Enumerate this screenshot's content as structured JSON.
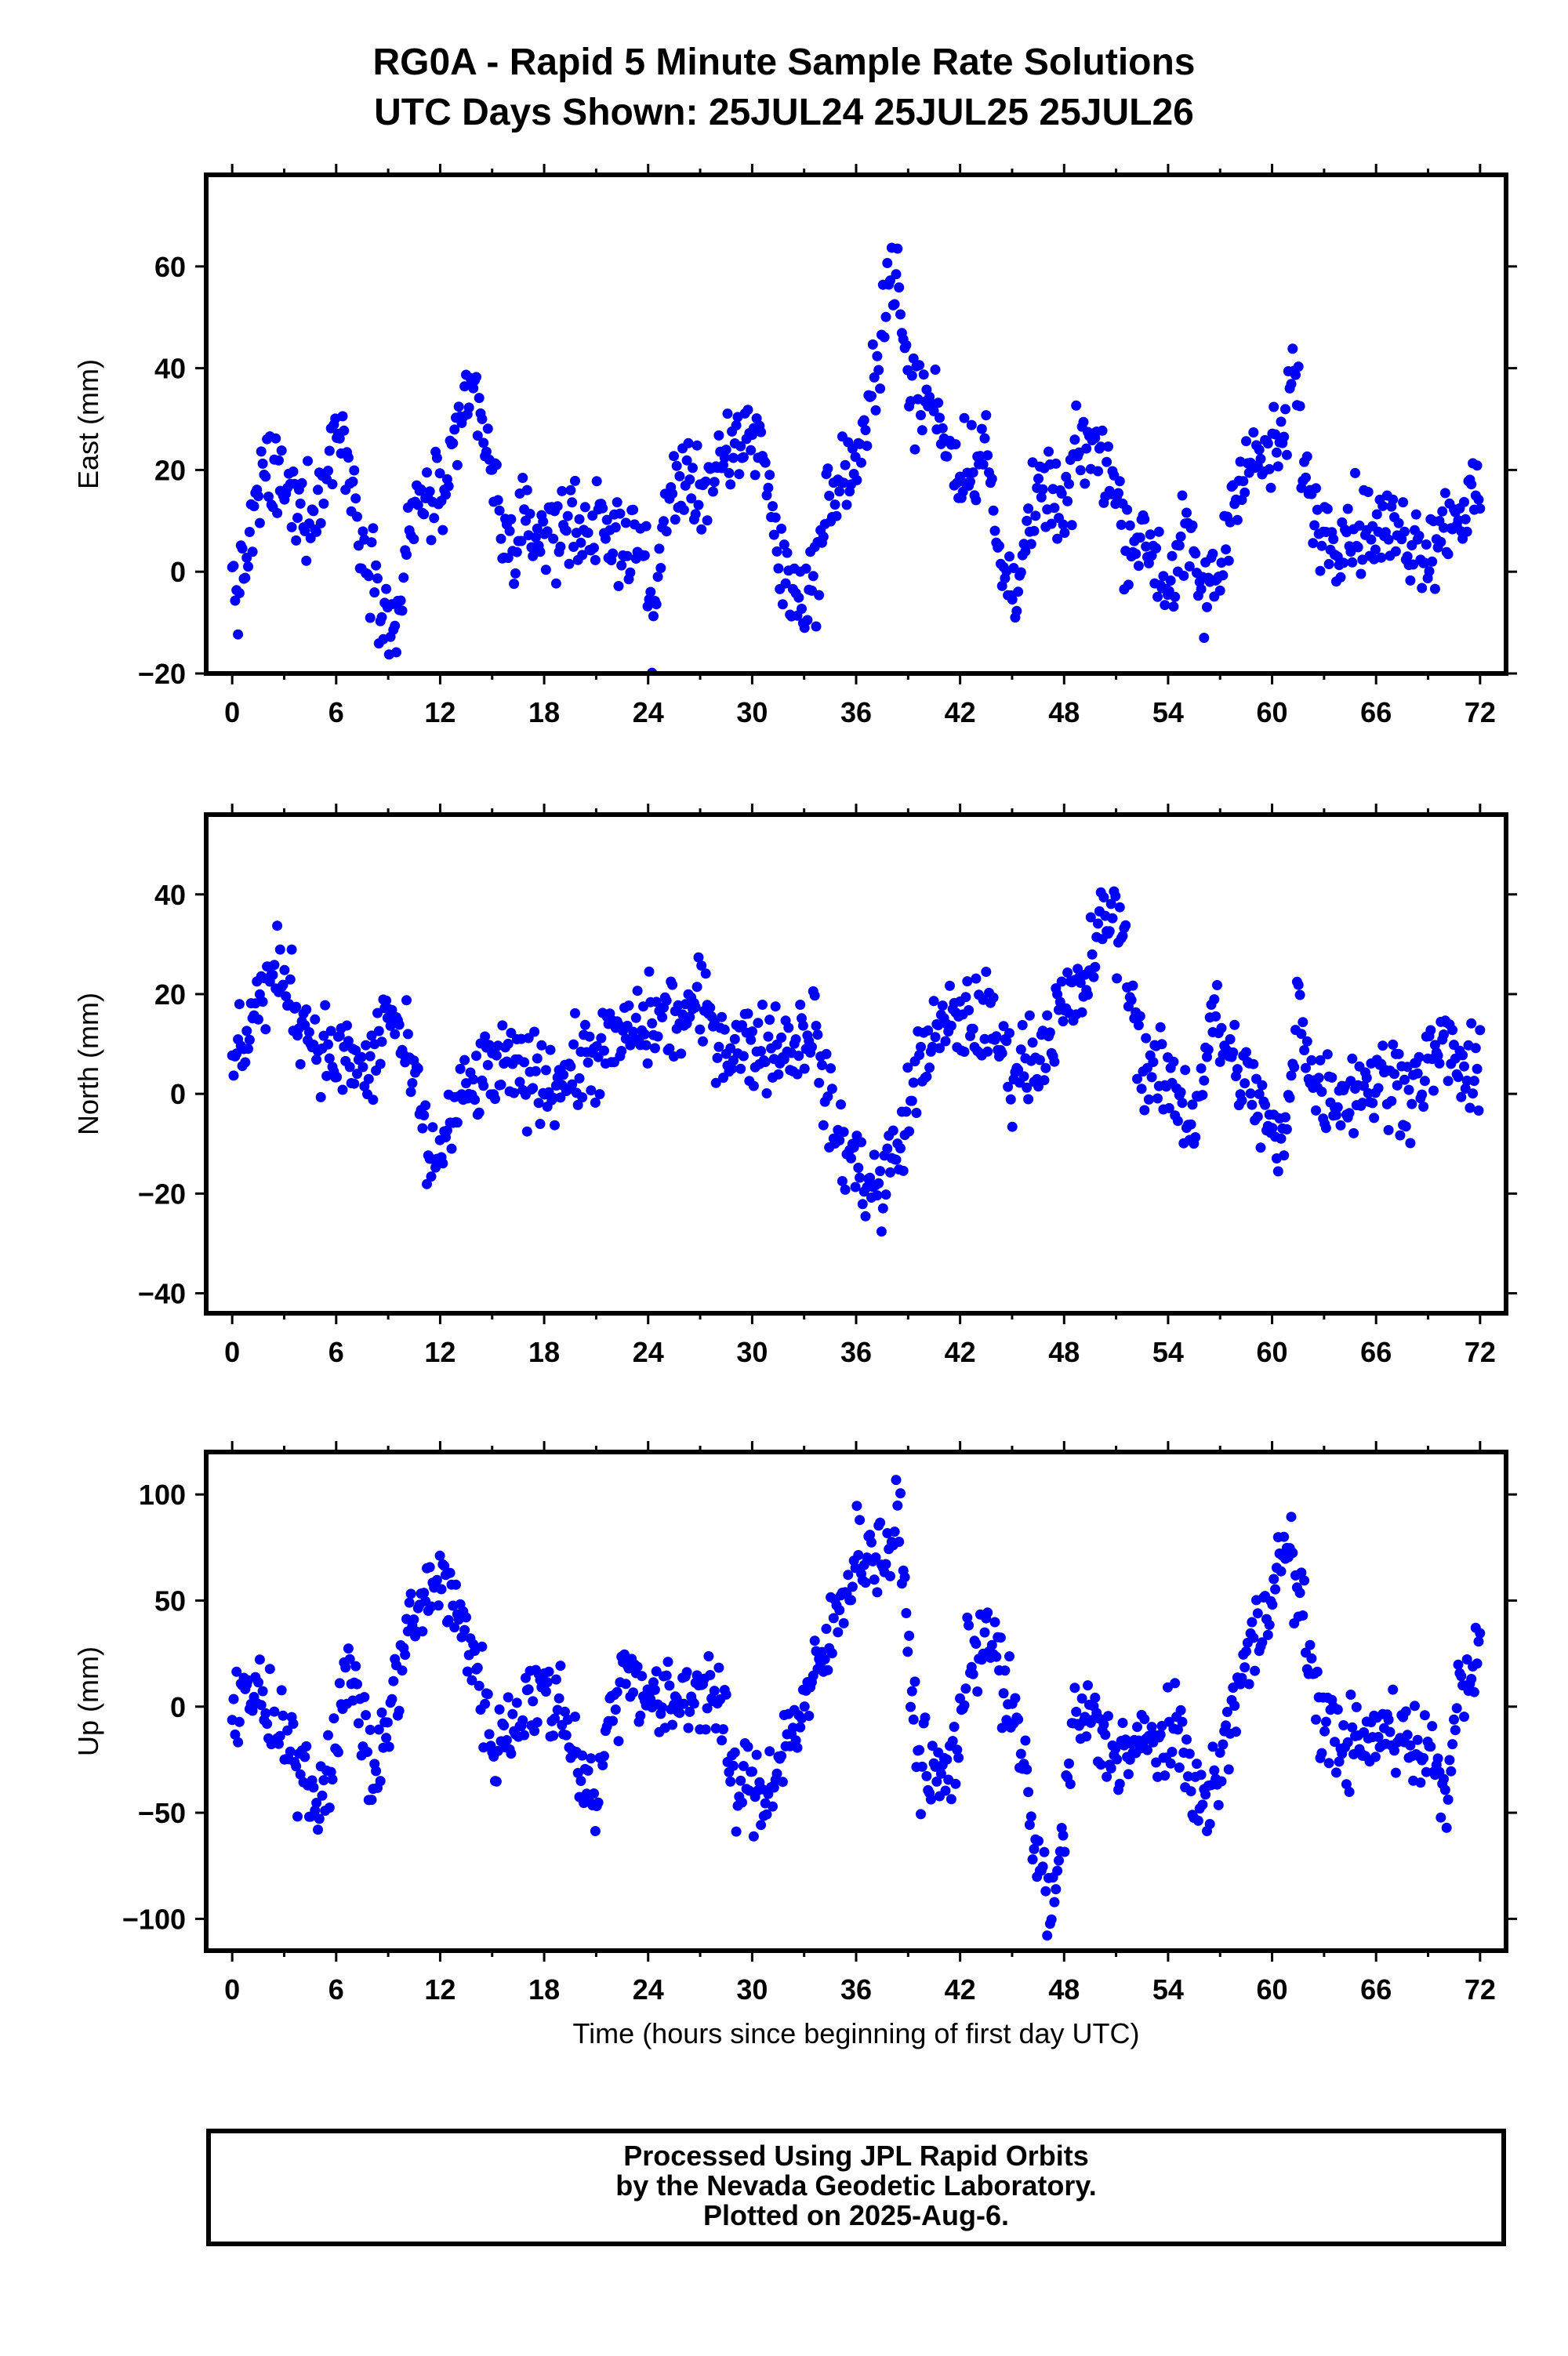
{
  "title": "RG0A - Rapid 5 Minute Sample Rate Solutions",
  "subtitle": "UTC Days Shown:  25JUL24 25JUL25 25JUL26",
  "footer": {
    "line1": "Processed Using JPL Rapid Orbits",
    "line2": "by the Nevada Geodetic Laboratory.",
    "line3": "Plotted on 2025-Aug-6."
  },
  "colors": {
    "points": "#0000ff",
    "frame": "#000000"
  },
  "chart_data": [
    {
      "type": "scatter",
      "ylabel": "East (mm)",
      "xlabel": "",
      "xlim": [
        -1.5,
        73.5
      ],
      "ylim": [
        -20,
        78
      ],
      "xticks": [
        0,
        6,
        12,
        18,
        24,
        30,
        36,
        42,
        48,
        54,
        60,
        66,
        72
      ],
      "yticks": [
        -20,
        0,
        20,
        40,
        60
      ],
      "tick_labels": [
        "−20",
        "0",
        "20",
        "40",
        "60"
      ],
      "anchors": [
        [
          0,
          -2
        ],
        [
          0.5,
          -4
        ],
        [
          1.2,
          10
        ],
        [
          2,
          20
        ],
        [
          2.8,
          17
        ],
        [
          3.5,
          13
        ],
        [
          4.5,
          13
        ],
        [
          5.3,
          16
        ],
        [
          6,
          30
        ],
        [
          6.6,
          22
        ],
        [
          7.5,
          6
        ],
        [
          8.5,
          -2
        ],
        [
          9.3,
          -14
        ],
        [
          10,
          2
        ],
        [
          10.8,
          15
        ],
        [
          12,
          14
        ],
        [
          12.8,
          20
        ],
        [
          13.5,
          33
        ],
        [
          14,
          36
        ],
        [
          15,
          18
        ],
        [
          15.8,
          5
        ],
        [
          17,
          8
        ],
        [
          18,
          8
        ],
        [
          20,
          10
        ],
        [
          22,
          6
        ],
        [
          23.5,
          7
        ],
        [
          24.2,
          -10
        ],
        [
          24.8,
          6
        ],
        [
          25.5,
          18
        ],
        [
          27,
          17
        ],
        [
          28.5,
          20
        ],
        [
          29.5,
          27
        ],
        [
          30.5,
          27
        ],
        [
          31.5,
          3
        ],
        [
          32.5,
          -5
        ],
        [
          33.5,
          -3
        ],
        [
          34.5,
          15
        ],
        [
          36.5,
          24
        ],
        [
          37.5,
          50
        ],
        [
          38.2,
          62
        ],
        [
          39,
          36
        ],
        [
          40.5,
          33
        ],
        [
          42,
          20
        ],
        [
          43.5,
          25
        ],
        [
          44.2,
          2
        ],
        [
          45,
          -3
        ],
        [
          46,
          8
        ],
        [
          47,
          17
        ],
        [
          48,
          10
        ],
        [
          49,
          26
        ],
        [
          50.5,
          22
        ],
        [
          51.5,
          8
        ],
        [
          53,
          5
        ],
        [
          54,
          -3
        ],
        [
          55,
          7
        ],
        [
          56,
          -5
        ],
        [
          57,
          0
        ],
        [
          58,
          20
        ],
        [
          59.5,
          22
        ],
        [
          60.5,
          24
        ],
        [
          61.3,
          40
        ],
        [
          62,
          16
        ],
        [
          63,
          8
        ],
        [
          65,
          9
        ],
        [
          67,
          8
        ],
        [
          69,
          5
        ],
        [
          70.5,
          12
        ],
        [
          71.5,
          14
        ]
      ],
      "point_count": 860
    },
    {
      "type": "scatter",
      "ylabel": "North (mm)",
      "xlabel": "",
      "xlim": [
        -1.5,
        73.5
      ],
      "ylim": [
        -44,
        56
      ],
      "xticks": [
        0,
        6,
        12,
        18,
        24,
        30,
        36,
        42,
        48,
        54,
        60,
        66,
        72
      ],
      "yticks": [
        -40,
        -20,
        0,
        20,
        40
      ],
      "tick_labels": [
        "−40",
        "−20",
        "0",
        "20",
        "40"
      ],
      "anchors": [
        [
          0,
          5
        ],
        [
          1,
          15
        ],
        [
          2,
          22
        ],
        [
          3,
          24
        ],
        [
          4,
          15
        ],
        [
          5.5,
          8
        ],
        [
          7,
          6
        ],
        [
          8,
          4
        ],
        [
          9,
          18
        ],
        [
          10.5,
          2
        ],
        [
          11.5,
          -15
        ],
        [
          12.5,
          -7
        ],
        [
          13.5,
          0
        ],
        [
          15,
          5
        ],
        [
          17,
          4
        ],
        [
          19,
          3
        ],
        [
          21,
          8
        ],
        [
          23,
          12
        ],
        [
          24.5,
          15
        ],
        [
          26,
          15
        ],
        [
          27,
          18
        ],
        [
          28.5,
          10
        ],
        [
          30.5,
          10
        ],
        [
          32.5,
          10
        ],
        [
          33.5,
          15
        ],
        [
          34.5,
          -5
        ],
        [
          35.5,
          -12
        ],
        [
          37.3,
          -20
        ],
        [
          38.5,
          -10
        ],
        [
          40,
          10
        ],
        [
          42,
          15
        ],
        [
          43.5,
          15
        ],
        [
          45,
          5
        ],
        [
          46.5,
          8
        ],
        [
          47.5,
          15
        ],
        [
          49,
          20
        ],
        [
          50.5,
          37
        ],
        [
          51.5,
          30
        ],
        [
          52.5,
          6
        ],
        [
          54,
          2
        ],
        [
          55.5,
          -5
        ],
        [
          56.5,
          15
        ],
        [
          58,
          5
        ],
        [
          59.3,
          -2
        ],
        [
          60.3,
          -12
        ],
        [
          61,
          -5
        ],
        [
          61.5,
          25
        ],
        [
          62.2,
          2
        ],
        [
          64,
          0
        ],
        [
          66,
          3
        ],
        [
          68,
          2
        ],
        [
          70,
          10
        ],
        [
          71.5,
          2
        ]
      ],
      "point_count": 860
    },
    {
      "type": "scatter",
      "ylabel": "Up (mm)",
      "xlabel": "Time (hours since beginning of first day UTC)",
      "xlim": [
        -1.5,
        73.5
      ],
      "ylim": [
        -115,
        120
      ],
      "xticks": [
        0,
        6,
        12,
        18,
        24,
        30,
        36,
        42,
        48,
        54,
        60,
        66,
        72
      ],
      "yticks": [
        -100,
        -50,
        0,
        50,
        100
      ],
      "tick_labels": [
        "−100",
        "−50",
        "0",
        "50",
        "100"
      ],
      "anchors": [
        [
          0,
          5
        ],
        [
          1,
          10
        ],
        [
          2,
          -5
        ],
        [
          3,
          -20
        ],
        [
          4,
          -25
        ],
        [
          5,
          -45
        ],
        [
          6,
          -10
        ],
        [
          7,
          20
        ],
        [
          8,
          -35
        ],
        [
          9,
          -10
        ],
        [
          10,
          35
        ],
        [
          11,
          45
        ],
        [
          12,
          65
        ],
        [
          12.8,
          45
        ],
        [
          14,
          25
        ],
        [
          15,
          -20
        ],
        [
          16,
          -10
        ],
        [
          17,
          5
        ],
        [
          18,
          5
        ],
        [
          19,
          0
        ],
        [
          20,
          -25
        ],
        [
          21,
          -45
        ],
        [
          22,
          5
        ],
        [
          23,
          20
        ],
        [
          24,
          5
        ],
        [
          25,
          -2
        ],
        [
          26,
          5
        ],
        [
          27,
          10
        ],
        [
          28,
          5
        ],
        [
          29,
          -40
        ],
        [
          30,
          -35
        ],
        [
          30.5,
          -45
        ],
        [
          32,
          -15
        ],
        [
          33,
          0
        ],
        [
          34,
          20
        ],
        [
          35,
          45
        ],
        [
          36,
          75
        ],
        [
          37.5,
          70
        ],
        [
          38.5,
          85
        ],
        [
          39.5,
          -20
        ],
        [
          40.5,
          -35
        ],
        [
          41.5,
          -30
        ],
        [
          42.5,
          20
        ],
        [
          43.5,
          40
        ],
        [
          44.5,
          10
        ],
        [
          45.5,
          -20
        ],
        [
          46.5,
          -75
        ],
        [
          47.5,
          -95
        ],
        [
          48.5,
          -10
        ],
        [
          49.5,
          -5
        ],
        [
          50.5,
          -20
        ],
        [
          52,
          -20
        ],
        [
          54,
          -15
        ],
        [
          55,
          -20
        ],
        [
          56,
          -50
        ],
        [
          57,
          -30
        ],
        [
          58,
          10
        ],
        [
          59,
          30
        ],
        [
          60,
          60
        ],
        [
          61,
          75
        ],
        [
          62,
          30
        ],
        [
          63,
          -10
        ],
        [
          65,
          -20
        ],
        [
          67,
          -10
        ],
        [
          69,
          -20
        ],
        [
          70,
          -40
        ],
        [
          71,
          20
        ]
      ],
      "point_count": 860
    }
  ]
}
